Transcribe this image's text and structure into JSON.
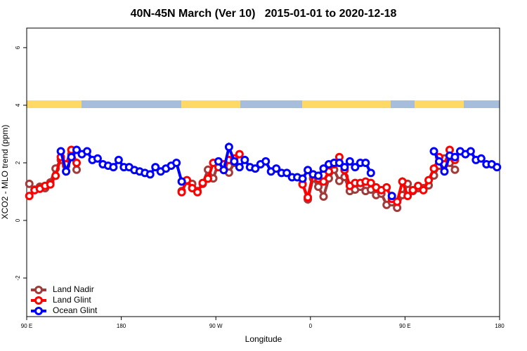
{
  "chart_data": {
    "type": "line",
    "title": "40N-45N March (Ver 10)   2015-01-01 to 2020-12-18",
    "x_label": "Longitude",
    "y_label": "XCO2 - MLO trend (ppm)",
    "xlim": [
      90,
      540
    ],
    "xticks": [
      {
        "value": 90,
        "label": "90 E"
      },
      180,
      {
        "value": 270,
        "label": "90 W"
      },
      {
        "value": 360,
        "label": "0"
      },
      {
        "value": 450,
        "label": "90 E"
      },
      {
        "value": 540,
        "label": "180"
      }
    ],
    "ylim": [
      -3.34,
      6.68
    ],
    "yticks": [
      -2,
      0,
      2,
      4,
      6
    ],
    "legend": "bottom-left",
    "series": [
      {
        "name": "Land Nadir",
        "color": "#a33a3a",
        "x": [
          92.5,
          97.5,
          102.5,
          107.5,
          112.5,
          117.5,
          122.5,
          127.5,
          132.5,
          137.5,
          null,
          237.5,
          242.5,
          247.5,
          252.5,
          257.5,
          262.5,
          267.5,
          272.5,
          277.5,
          282.5,
          287.5,
          null,
          352.5,
          357.5,
          362.5,
          367.5,
          372.5,
          377.5,
          382.5,
          387.5,
          392.5,
          397.5,
          402.5,
          407.5,
          412.5,
          417.5,
          422.5,
          427.5,
          432.5,
          437.5,
          442.5,
          447.5,
          452.5,
          457.5,
          462.5,
          467.5,
          472.5,
          477.5,
          482.5,
          487.5,
          492.5,
          497.5
        ],
        "values": [
          1.27,
          1.07,
          1.17,
          1.12,
          1.32,
          1.8,
          2.1,
          1.9,
          2.3,
          1.76,
          null,
          1.02,
          1.37,
          1.27,
          1.02,
          1.27,
          1.76,
          1.46,
          2.0,
          1.8,
          1.66,
          2.0,
          null,
          1.27,
          0.73,
          1.46,
          1.17,
          0.83,
          1.46,
          1.76,
          1.37,
          1.51,
          1.02,
          1.07,
          1.17,
          1.02,
          1.07,
          0.88,
          0.93,
          0.54,
          0.63,
          0.44,
          0.88,
          1.27,
          1.02,
          1.12,
          1.12,
          1.22,
          1.56,
          1.9,
          2.15,
          2.0,
          1.76
        ]
      },
      {
        "name": "Land Glint",
        "color": "#ff0000",
        "x": [
          92.5,
          97.5,
          102.5,
          107.5,
          112.5,
          117.5,
          122.5,
          127.5,
          132.5,
          137.5,
          null,
          237.5,
          242.5,
          247.5,
          252.5,
          257.5,
          262.5,
          267.5,
          272.5,
          277.5,
          282.5,
          287.5,
          292.5,
          null,
          352.5,
          357.5,
          362.5,
          367.5,
          372.5,
          377.5,
          382.5,
          387.5,
          392.5,
          397.5,
          402.5,
          407.5,
          412.5,
          417.5,
          422.5,
          427.5,
          432.5,
          437.5,
          442.5,
          447.5,
          452.5,
          457.5,
          462.5,
          467.5,
          472.5,
          477.5,
          482.5,
          487.5,
          492.5,
          497.5
        ],
        "values": [
          0.85,
          1.05,
          1.1,
          1.2,
          1.25,
          1.55,
          2.2,
          1.95,
          2.45,
          2.0,
          null,
          0.98,
          1.4,
          1.12,
          0.98,
          1.3,
          1.45,
          2.0,
          1.85,
          1.95,
          2.1,
          2.15,
          2.3,
          null,
          1.25,
          0.8,
          1.6,
          1.45,
          1.35,
          1.7,
          1.95,
          2.2,
          1.75,
          1.2,
          1.3,
          1.3,
          1.35,
          1.3,
          1.15,
          1.05,
          1.15,
          0.75,
          0.65,
          1.35,
          0.85,
          1.05,
          1.2,
          1.05,
          1.4,
          1.8,
          2.2,
          1.95,
          2.45,
          2.1
        ]
      },
      {
        "name": "Ocean Glint",
        "color": "#0000ff",
        "x": [
          122.5,
          127.5,
          132.5,
          137.5,
          142.5,
          147.5,
          152.5,
          157.5,
          162.5,
          167.5,
          172.5,
          177.5,
          182.5,
          187.5,
          192.5,
          197.5,
          202.5,
          207.5,
          212.5,
          217.5,
          222.5,
          227.5,
          232.5,
          237.5,
          null,
          272.5,
          277.5,
          282.5,
          287.5,
          292.5,
          297.5,
          302.5,
          307.5,
          312.5,
          317.5,
          322.5,
          327.5,
          332.5,
          337.5,
          342.5,
          347.5,
          352.5,
          357.5,
          362.5,
          367.5,
          372.5,
          377.5,
          382.5,
          387.5,
          392.5,
          397.5,
          402.5,
          407.5,
          412.5,
          417.5,
          null,
          437.5,
          null,
          477.5,
          482.5,
          487.5,
          492.5,
          497.5,
          502.5,
          507.5,
          512.5,
          517.5,
          522.5,
          527.5,
          532.5,
          537.5
        ],
        "values": [
          2.4,
          1.7,
          2.2,
          2.45,
          2.3,
          2.4,
          2.1,
          2.15,
          1.95,
          1.9,
          1.85,
          2.1,
          1.85,
          1.85,
          1.75,
          1.7,
          1.65,
          1.6,
          1.85,
          1.7,
          1.8,
          1.9,
          2.0,
          1.35,
          null,
          2.05,
          1.75,
          2.55,
          2.05,
          1.85,
          2.1,
          1.85,
          1.8,
          1.95,
          2.05,
          1.7,
          1.8,
          1.65,
          1.65,
          1.5,
          1.5,
          1.45,
          1.75,
          1.6,
          1.55,
          1.8,
          1.95,
          2.0,
          2.0,
          1.85,
          2.05,
          1.85,
          2.0,
          2.0,
          1.65,
          null,
          0.85,
          null,
          2.4,
          2.05,
          1.7,
          2.25,
          2.2,
          2.4,
          2.3,
          2.4,
          2.1,
          2.15,
          1.95,
          1.95,
          1.85
        ]
      }
    ]
  }
}
